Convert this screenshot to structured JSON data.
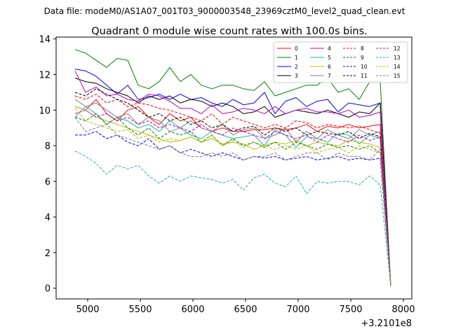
{
  "chart_data": {
    "type": "line",
    "suptitle": "Data file: modeM0/AS1A07_001T03_9000003548_23969cztM0_level2_quad_clean.evt",
    "title": "Quadrant 0 module wise count rates with 100.0s bins.",
    "xlabel": "",
    "ylabel": "",
    "x_offset_label": "+3.2101e8",
    "xlim": [
      4700,
      8080
    ],
    "ylim": [
      -0.6,
      14.1
    ],
    "xticks": [
      5000,
      5500,
      6000,
      6500,
      7000,
      7500,
      8000
    ],
    "yticks": [
      0,
      2,
      4,
      6,
      8,
      10,
      12,
      14
    ],
    "legend_position": "top-right",
    "legend_columns": 4,
    "x": [
      4880,
      4980,
      5080,
      5180,
      5280,
      5380,
      5480,
      5580,
      5680,
      5780,
      5880,
      5980,
      6080,
      6180,
      6280,
      6380,
      6480,
      6580,
      6680,
      6780,
      6880,
      6980,
      7080,
      7180,
      7280,
      7380,
      7480,
      7580,
      7680,
      7780,
      7880
    ],
    "series": [
      {
        "name": "0",
        "color": "#ff0000",
        "dash": "solid",
        "values": [
          10.2,
          10.0,
          10.6,
          9.8,
          9.4,
          10.0,
          10.2,
          9.6,
          9.2,
          9.8,
          9.4,
          9.6,
          9.0,
          8.8,
          9.0,
          8.8,
          8.8,
          8.9,
          8.9,
          9.0,
          8.9,
          9.0,
          9.2,
          8.8,
          9.1,
          9.0,
          9.2,
          9.0,
          9.1,
          9.2,
          0.1
        ]
      },
      {
        "name": "1",
        "color": "#008000",
        "dash": "solid",
        "values": [
          13.4,
          13.2,
          12.8,
          12.4,
          12.9,
          12.8,
          11.4,
          11.2,
          11.6,
          12.4,
          11.6,
          12.0,
          11.4,
          11.2,
          11.4,
          11.4,
          11.2,
          11.1,
          11.6,
          10.8,
          11.0,
          11.2,
          11.4,
          11.4,
          11.8,
          11.0,
          11.2,
          10.6,
          11.6,
          11.6,
          0.1
        ]
      },
      {
        "name": "2",
        "color": "#0000ff",
        "dash": "solid",
        "values": [
          12.3,
          12.2,
          11.9,
          11.4,
          10.9,
          11.4,
          10.6,
          10.7,
          10.9,
          10.6,
          10.9,
          10.6,
          10.7,
          10.4,
          10.2,
          10.6,
          10.3,
          10.4,
          11.0,
          9.8,
          10.5,
          10.7,
          10.2,
          10.5,
          10.6,
          9.9,
          10.4,
          10.3,
          10.2,
          10.4,
          0.1
        ]
      },
      {
        "name": "3",
        "color": "#000000",
        "dash": "solid",
        "values": [
          11.8,
          11.6,
          11.5,
          11.2,
          11.0,
          10.8,
          10.4,
          10.8,
          10.6,
          10.8,
          10.4,
          10.6,
          10.5,
          10.2,
          10.4,
          10.2,
          9.8,
          9.9,
          10.2,
          9.6,
          9.8,
          10.0,
          9.9,
          9.8,
          10.0,
          9.8,
          9.6,
          9.9,
          9.8,
          10.4,
          0.1
        ]
      },
      {
        "name": "4",
        "color": "#c000c0",
        "dash": "solid",
        "values": [
          12.2,
          11.0,
          11.3,
          10.8,
          10.9,
          10.6,
          10.5,
          10.9,
          10.8,
          10.5,
          10.1,
          10.1,
          9.8,
          10.3,
          9.8,
          9.9,
          10.1,
          10.0,
          9.8,
          10.2,
          9.8,
          10.0,
          10.1,
          9.9,
          9.9,
          9.8,
          10.0,
          9.6,
          9.7,
          9.9,
          0.1
        ]
      },
      {
        "name": "5",
        "color": "#20b2aa",
        "dash": "solid",
        "values": [
          9.6,
          10.2,
          9.8,
          9.2,
          9.6,
          9.4,
          9.0,
          9.2,
          8.8,
          9.4,
          9.0,
          8.6,
          8.4,
          8.8,
          8.6,
          8.4,
          8.5,
          8.6,
          8.0,
          8.9,
          8.6,
          7.9,
          8.5,
          8.4,
          8.2,
          8.7,
          8.6,
          8.1,
          8.6,
          8.4,
          0.1
        ]
      },
      {
        "name": "6",
        "color": "#bdbd00",
        "dash": "solid",
        "values": [
          10.2,
          10.0,
          9.6,
          9.4,
          9.2,
          9.0,
          8.8,
          8.6,
          8.4,
          8.2,
          8.3,
          8.5,
          8.2,
          8.4,
          8.1,
          8.2,
          8.1,
          7.8,
          8.0,
          8.2,
          8.1,
          8.3,
          8.0,
          8.2,
          8.1,
          8.0,
          8.3,
          8.2,
          8.1,
          7.9,
          0.1
        ]
      },
      {
        "name": "7",
        "color": "#808080",
        "dash": "solid",
        "values": [
          10.6,
          10.2,
          10.4,
          10.0,
          9.6,
          9.8,
          9.2,
          9.6,
          9.4,
          8.8,
          9.0,
          9.4,
          9.0,
          8.8,
          9.2,
          8.6,
          8.9,
          9.0,
          8.4,
          8.6,
          9.0,
          8.2,
          8.8,
          8.4,
          8.9,
          8.6,
          8.4,
          8.9,
          8.6,
          8.8,
          0.1
        ]
      },
      {
        "name": "8",
        "color": "#ff0000",
        "dash": "dashed",
        "values": [
          10.8,
          10.6,
          10.9,
          10.4,
          10.6,
          10.2,
          10.4,
          10.3,
          10.1,
          10.0,
          9.8,
          9.6,
          9.4,
          9.8,
          9.2,
          9.6,
          9.4,
          9.2,
          9.0,
          9.2,
          9.0,
          9.4,
          9.3,
          9.0,
          9.2,
          9.1,
          9.0,
          9.1,
          8.9,
          8.7,
          0.1
        ]
      },
      {
        "name": "9",
        "color": "#008000",
        "dash": "dashed",
        "values": [
          9.6,
          9.4,
          9.8,
          9.2,
          9.6,
          9.0,
          8.6,
          9.0,
          8.4,
          8.8,
          8.6,
          8.8,
          8.2,
          8.6,
          8.0,
          8.4,
          8.0,
          8.2,
          7.9,
          8.2,
          7.8,
          8.2,
          8.0,
          7.8,
          8.1,
          7.9,
          8.0,
          7.8,
          8.0,
          7.6,
          0.1
        ]
      },
      {
        "name": "10",
        "color": "#0000ff",
        "dash": "dashed",
        "values": [
          8.6,
          8.6,
          8.8,
          8.4,
          8.6,
          8.2,
          8.0,
          8.4,
          7.8,
          8.0,
          7.6,
          7.8,
          7.6,
          7.4,
          7.6,
          7.4,
          7.2,
          7.4,
          7.3,
          7.4,
          7.2,
          7.3,
          7.4,
          7.2,
          7.3,
          7.4,
          7.2,
          7.3,
          7.2,
          7.3,
          0.1
        ]
      },
      {
        "name": "11",
        "color": "#000000",
        "dash": "dashed",
        "values": [
          11.0,
          10.8,
          11.2,
          10.9,
          10.6,
          10.4,
          10.0,
          9.6,
          9.8,
          9.4,
          9.6,
          9.2,
          9.4,
          9.0,
          9.2,
          8.8,
          9.0,
          9.1,
          8.6,
          9.0,
          8.8,
          9.0,
          8.6,
          8.8,
          8.7,
          8.6,
          8.8,
          8.4,
          8.7,
          8.5,
          0.1
        ]
      },
      {
        "name": "12",
        "color": "#c000c0",
        "dash": "dashed",
        "values": [
          9.8,
          10.0,
          9.6,
          9.8,
          9.4,
          9.6,
          9.2,
          9.4,
          9.0,
          9.2,
          9.0,
          8.8,
          9.2,
          8.8,
          8.6,
          9.0,
          8.8,
          8.6,
          8.4,
          8.8,
          8.6,
          8.4,
          8.6,
          8.2,
          8.6,
          8.4,
          8.2,
          8.6,
          8.3,
          8.5,
          0.1
        ]
      },
      {
        "name": "13",
        "color": "#20b2aa",
        "dash": "dashed",
        "values": [
          7.7,
          7.4,
          7.0,
          6.4,
          6.9,
          6.7,
          6.9,
          6.3,
          5.9,
          6.3,
          6.0,
          6.3,
          6.2,
          6.1,
          5.9,
          6.1,
          5.5,
          6.2,
          6.4,
          5.9,
          5.7,
          6.3,
          5.3,
          6.0,
          5.9,
          6.0,
          6.0,
          5.8,
          6.3,
          5.8,
          0.1
        ]
      },
      {
        "name": "14",
        "color": "#bdbd00",
        "dash": "dashed",
        "values": [
          10.1,
          9.4,
          9.2,
          9.0,
          8.8,
          8.9,
          8.4,
          8.6,
          8.2,
          8.4,
          8.3,
          8.5,
          8.2,
          8.6,
          8.0,
          8.3,
          7.9,
          8.2,
          8.0,
          7.8,
          8.0,
          7.8,
          8.0,
          7.6,
          7.8,
          7.9,
          7.6,
          8.0,
          7.8,
          7.6,
          0.1
        ]
      },
      {
        "name": "15",
        "color": "#808080",
        "dash": "dashed",
        "values": [
          9.6,
          8.8,
          9.0,
          9.2,
          8.6,
          8.4,
          8.2,
          8.0,
          7.8,
          8.0,
          7.6,
          7.4,
          7.4,
          7.6,
          7.4,
          7.6,
          7.2,
          7.4,
          7.4,
          7.6,
          7.2,
          7.4,
          7.6,
          7.6,
          7.2,
          7.6,
          7.4,
          7.4,
          7.2,
          7.8,
          0.1
        ]
      }
    ]
  }
}
